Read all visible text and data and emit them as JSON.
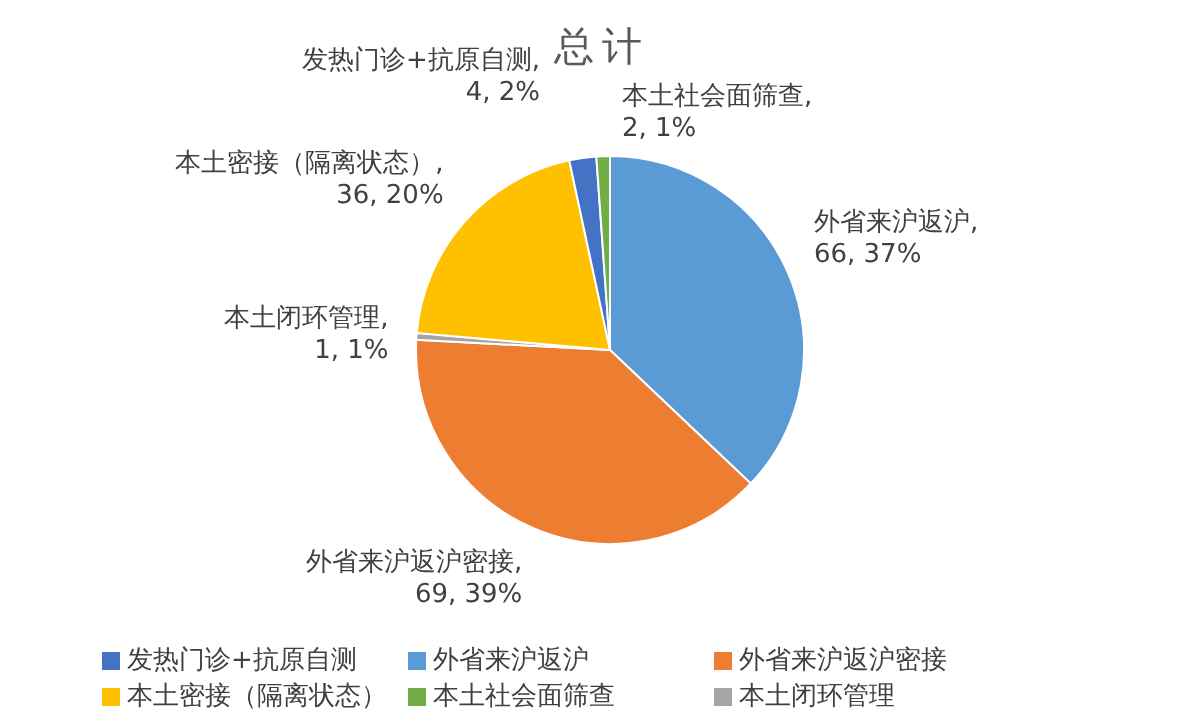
{
  "chart_data": {
    "type": "pie",
    "title": "总计",
    "categories": [
      "外省来沪返沪",
      "外省来沪返沪密接",
      "本土闭环管理",
      "本土密接（隔离状态）",
      "发热门诊+抗原自测",
      "本土社会面筛查"
    ],
    "values": [
      66,
      69,
      1,
      36,
      4,
      2
    ],
    "colors": [
      "#5b9bd5",
      "#ed7d31",
      "#a5a5a5",
      "#ffc000",
      "#4472c4",
      "#70ad47"
    ],
    "value_labels": [
      "外省来沪返沪, 66, 37%",
      "外省来沪返沪密接, 69, 39%",
      "本土闭环管理, 1, 1%",
      "本土密接（隔离状态）, 36, 20%",
      "发热门诊+抗原自测, 4, 2%",
      "本土社会面筛查, 2, 1%"
    ],
    "legend": "bottom"
  }
}
